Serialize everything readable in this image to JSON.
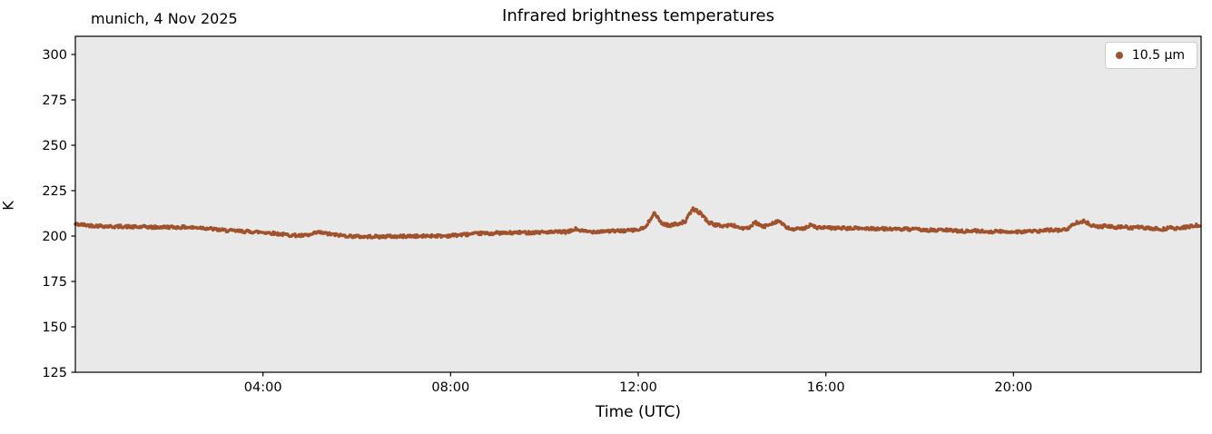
{
  "figure": {
    "title": "Infrared brightness temperatures",
    "annotation": "munich, 4 Nov 2025",
    "xlabel": "Time (UTC)",
    "ylabel": "K",
    "legend": {
      "label": "10.5 µm"
    }
  },
  "chart_data": {
    "type": "scatter",
    "title": "Infrared brightness temperatures",
    "subtitle": "munich, 4 Nov 2025",
    "xlabel": "Time (UTC)",
    "ylabel": "K",
    "grid": false,
    "legend_position": "upper right",
    "plot_background": "#E9E9E9",
    "spine_color": "#000000",
    "xlim": [
      0,
      24
    ],
    "ylim": [
      125,
      310
    ],
    "xticks": {
      "values": [
        4,
        8,
        12,
        16,
        20
      ],
      "labels": [
        "04:00",
        "08:00",
        "12:00",
        "16:00",
        "20:00"
      ]
    },
    "yticks": {
      "values": [
        125,
        150,
        175,
        200,
        225,
        250,
        275,
        300
      ],
      "labels": [
        "125",
        "150",
        "175",
        "200",
        "225",
        "250",
        "275",
        "300"
      ]
    },
    "series": [
      {
        "name": "10.5 µm",
        "color": "#A0522D",
        "x_start_hour": 0,
        "x_step_hours": 0.1666667,
        "y_K": [
          206.5,
          206.2,
          205.8,
          205.6,
          205.4,
          205.2,
          205.3,
          205.1,
          204.9,
          205.1,
          204.8,
          204.9,
          205.0,
          204.8,
          204.9,
          204.6,
          204.7,
          204.2,
          203.6,
          203.2,
          202.9,
          202.7,
          202.5,
          202.3,
          202.1,
          201.7,
          201.2,
          200.7,
          200.4,
          200.2,
          200.5,
          202.1,
          201.4,
          200.8,
          200.4,
          200.0,
          199.8,
          199.6,
          199.8,
          199.6,
          199.9,
          199.7,
          199.9,
          200.0,
          199.8,
          200.1,
          200.2,
          200.0,
          200.3,
          200.6,
          200.9,
          201.1,
          201.6,
          201.3,
          201.8,
          201.6,
          201.8,
          202.0,
          201.9,
          202.1,
          202.2,
          202.1,
          202.3,
          202.2,
          203.9,
          202.6,
          202.4,
          202.6,
          202.8,
          202.7,
          202.9,
          203.1,
          203.4,
          205.0,
          213.0,
          207.0,
          205.8,
          206.8,
          208.0,
          215.0,
          212.5,
          207.5,
          206.0,
          205.6,
          206.1,
          204.6,
          204.1,
          207.4,
          205.0,
          207.0,
          208.4,
          204.4,
          203.6,
          204.1,
          205.9,
          204.6,
          204.6,
          204.3,
          204.5,
          204.1,
          204.4,
          204.1,
          204.2,
          203.9,
          204.1,
          203.6,
          203.9,
          203.6,
          203.6,
          203.3,
          203.1,
          203.4,
          203.1,
          202.9,
          202.6,
          202.9,
          202.6,
          202.4,
          202.6,
          202.3,
          202.5,
          202.4,
          202.7,
          202.5,
          203.1,
          203.5,
          203.1,
          204.1,
          207.6,
          208.1,
          206.1,
          205.1,
          205.6,
          204.6,
          205.1,
          204.6,
          204.9,
          204.3,
          204.1,
          203.6,
          204.6,
          204.1,
          204.9,
          205.6,
          206.1
        ]
      }
    ]
  }
}
